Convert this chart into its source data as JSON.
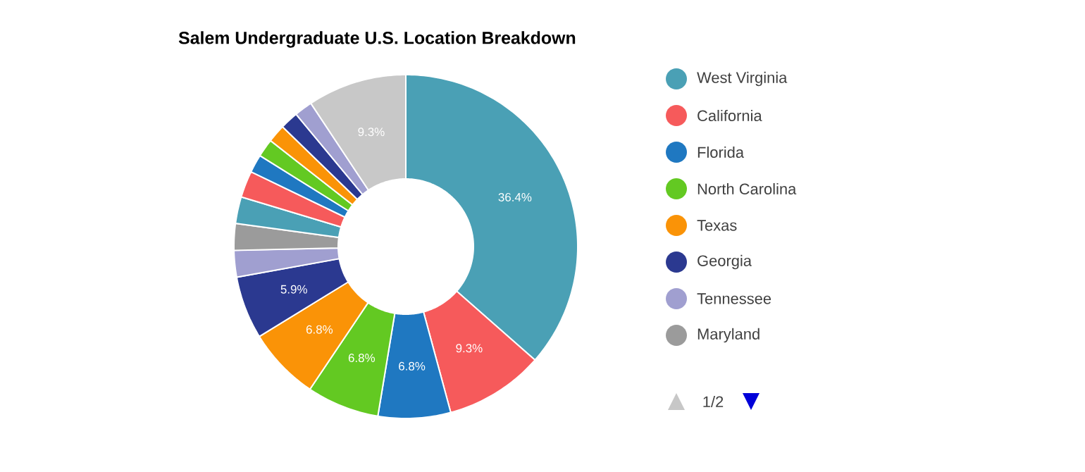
{
  "chart_data": {
    "type": "donut",
    "title": "Salem Undergraduate U.S. Location Breakdown",
    "categories": [
      "West Virginia",
      "California",
      "Florida",
      "North Carolina",
      "Texas",
      "Georgia",
      "Tennessee",
      "Maryland",
      null,
      null,
      null,
      null,
      null,
      null,
      null,
      null
    ],
    "values": [
      36.4,
      9.3,
      6.8,
      6.8,
      6.8,
      5.9,
      2.5,
      2.5,
      2.5,
      2.5,
      1.7,
      1.7,
      1.7,
      1.7,
      1.7,
      9.3
    ],
    "value_labels": [
      "36.4%",
      "9.3%",
      "6.8%",
      "6.8%",
      "6.8%",
      "5.9%",
      null,
      null,
      null,
      null,
      null,
      null,
      null,
      null,
      null,
      "9.3%"
    ],
    "colors": [
      "#4aa0b5",
      "#f65a5b",
      "#1f78c1",
      "#63c922",
      "#fa9307",
      "#2b3990",
      "#a09fd0",
      "#9b9b9b",
      "#4aa0b5",
      "#f65a5b",
      "#1f78c1",
      "#63c922",
      "#fa9307",
      "#2b3990",
      "#a09fd0",
      "#c8c8c8"
    ],
    "legend": "right",
    "annotations": [
      "1/2"
    ]
  }
}
